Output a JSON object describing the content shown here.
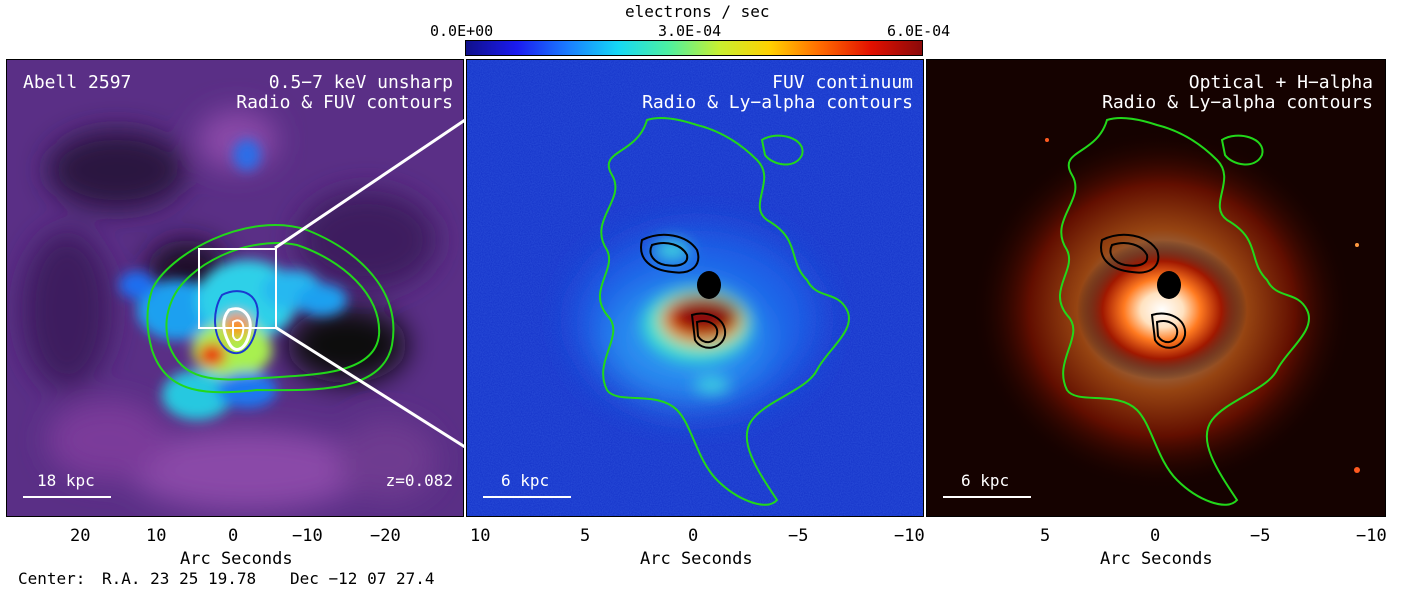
{
  "colorbar": {
    "title": "electrons / sec",
    "ticks": [
      "0.0E+00",
      "3.0E-04",
      "6.0E-04"
    ],
    "stops": [
      "#10108a",
      "#1b1bf0",
      "#1a7cff",
      "#15d8f5",
      "#4df0a0",
      "#c8f030",
      "#ffd000",
      "#ff6a00",
      "#e21000",
      "#8a0a0a"
    ]
  },
  "panel1": {
    "label_left": "Abell 2597",
    "label_right_1": "0.5−7 keV unsharp",
    "label_right_2": "Radio & FUV contours",
    "scale": "18 kpc",
    "redshift": "z=0.082",
    "xticks": [
      "20",
      "10",
      "0",
      "−10",
      "−20"
    ],
    "xtitle": "Arc Seconds"
  },
  "panel2": {
    "label_right_1": "FUV continuum",
    "label_right_2": "Radio & Ly−alpha contours",
    "scale": "6 kpc",
    "xticks": [
      "10",
      "5",
      "0",
      "−5",
      "−10"
    ],
    "xtitle": "Arc Seconds"
  },
  "panel3": {
    "label_right_1": "Optical + H−alpha",
    "label_right_2": "Radio & Ly−alpha contours",
    "scale": "6 kpc",
    "xticks": [
      "5",
      "0",
      "−5",
      "−10"
    ],
    "xtitle": "Arc Seconds"
  },
  "footer": {
    "center_label": "Center:",
    "ra_label": "R.A. 23 25 19.78",
    "dec_label": "Dec  −12 07 27.4"
  },
  "colors": {
    "contour_green": "#22d81a",
    "contour_black": "#000000",
    "contour_white": "#ffffff",
    "p1_background": "#5a2f86",
    "p2_background": "#1230c8",
    "p3_background": "#150200"
  },
  "icons": {
    "cursor": "none"
  }
}
